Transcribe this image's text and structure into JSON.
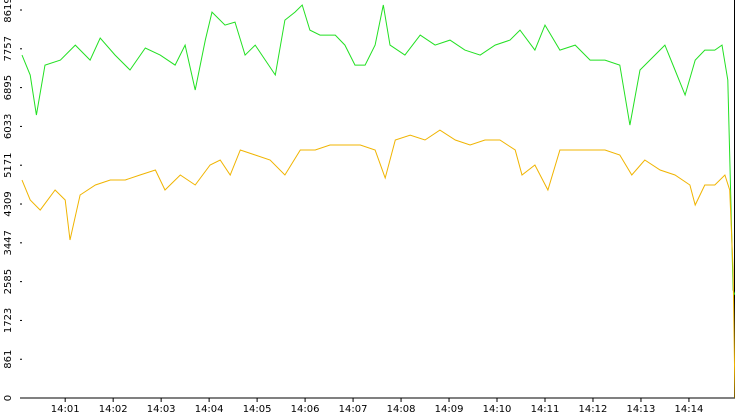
{
  "chart_data": {
    "type": "line",
    "xlim": [
      0.1,
      14.96
    ],
    "xticks": [
      {
        "value": 1,
        "label": "14:01"
      },
      {
        "value": 2,
        "label": "14:02"
      },
      {
        "value": 3,
        "label": "14:03"
      },
      {
        "value": 4,
        "label": "14:04"
      },
      {
        "value": 5,
        "label": "14:05"
      },
      {
        "value": 6,
        "label": "14:06"
      },
      {
        "value": 7,
        "label": "14:07"
      },
      {
        "value": 8,
        "label": "14:08"
      },
      {
        "value": 9,
        "label": "14:09"
      },
      {
        "value": 10,
        "label": "14:10"
      },
      {
        "value": 11,
        "label": "14:11"
      },
      {
        "value": 12,
        "label": "14:12"
      },
      {
        "value": 13,
        "label": "14:13"
      },
      {
        "value": 14,
        "label": "14:14"
      }
    ],
    "ylim": [
      0,
      8841
    ],
    "yticks": [
      0,
      861,
      1723,
      2585,
      3447,
      4309,
      5171,
      6033,
      6895,
      7757,
      8619
    ],
    "grid": false,
    "series": [
      {
        "color": "#22e022",
        "x": [
          0.1,
          0.27,
          0.4,
          0.58,
          0.9,
          1.21,
          1.52,
          1.73,
          2.04,
          2.35,
          2.67,
          2.98,
          3.29,
          3.5,
          3.71,
          3.92,
          4.06,
          4.33,
          4.54,
          4.75,
          4.96,
          5.17,
          5.38,
          5.58,
          5.79,
          5.94,
          6.1,
          6.31,
          6.63,
          6.83,
          7.04,
          7.25,
          7.46,
          7.63,
          7.77,
          8.08,
          8.4,
          8.71,
          9.02,
          9.33,
          9.65,
          9.96,
          10.27,
          10.48,
          10.79,
          11.0,
          11.31,
          11.63,
          11.94,
          12.25,
          12.56,
          12.77,
          12.98,
          13.29,
          13.5,
          13.71,
          13.92,
          14.13,
          14.33,
          14.54,
          14.69,
          14.81,
          14.92,
          14.96
        ],
        "values": [
          7618,
          7174,
          6286,
          7396,
          7507,
          7840,
          7507,
          7996,
          7618,
          7285,
          7774,
          7618,
          7396,
          7840,
          6841,
          7951,
          8573,
          8284,
          8351,
          7618,
          7840,
          7507,
          7174,
          8395,
          8573,
          8729,
          8173,
          8062,
          8062,
          7840,
          7396,
          7396,
          7840,
          8729,
          7840,
          7618,
          8062,
          7840,
          7951,
          7729,
          7618,
          7840,
          7951,
          8173,
          7729,
          8284,
          7729,
          7840,
          7507,
          7507,
          7396,
          6063,
          7285,
          7618,
          7840,
          7285,
          6730,
          7507,
          7729,
          7729,
          7840,
          7063,
          2399,
          2288
        ]
      },
      {
        "color": "#f0b400",
        "x": [
          0.1,
          0.27,
          0.48,
          0.79,
          1.0,
          1.1,
          1.31,
          1.63,
          1.94,
          2.25,
          2.56,
          2.88,
          3.08,
          3.4,
          3.71,
          4.02,
          4.23,
          4.44,
          4.65,
          4.96,
          5.27,
          5.58,
          5.9,
          6.21,
          6.52,
          6.83,
          7.15,
          7.46,
          7.67,
          7.88,
          8.19,
          8.5,
          8.81,
          9.13,
          9.44,
          9.75,
          10.06,
          10.38,
          10.52,
          10.79,
          11.06,
          11.31,
          11.63,
          11.94,
          12.25,
          12.56,
          12.81,
          13.08,
          13.4,
          13.71,
          14.02,
          14.13,
          14.33,
          14.54,
          14.75,
          14.85,
          14.92,
          14.96
        ],
        "values": [
          4841,
          4398,
          4175,
          4620,
          4398,
          3509,
          4509,
          4731,
          4842,
          4842,
          4953,
          5064,
          4620,
          4953,
          4731,
          5175,
          5286,
          4953,
          5508,
          5397,
          5286,
          4953,
          5508,
          5508,
          5619,
          5619,
          5619,
          5508,
          4886,
          5730,
          5841,
          5730,
          5952,
          5730,
          5619,
          5730,
          5730,
          5508,
          4953,
          5175,
          4620,
          5508,
          5508,
          5508,
          5508,
          5397,
          4953,
          5286,
          5064,
          4953,
          4731,
          4287,
          4731,
          4731,
          4953,
          4620,
          2843,
          0
        ]
      }
    ]
  }
}
